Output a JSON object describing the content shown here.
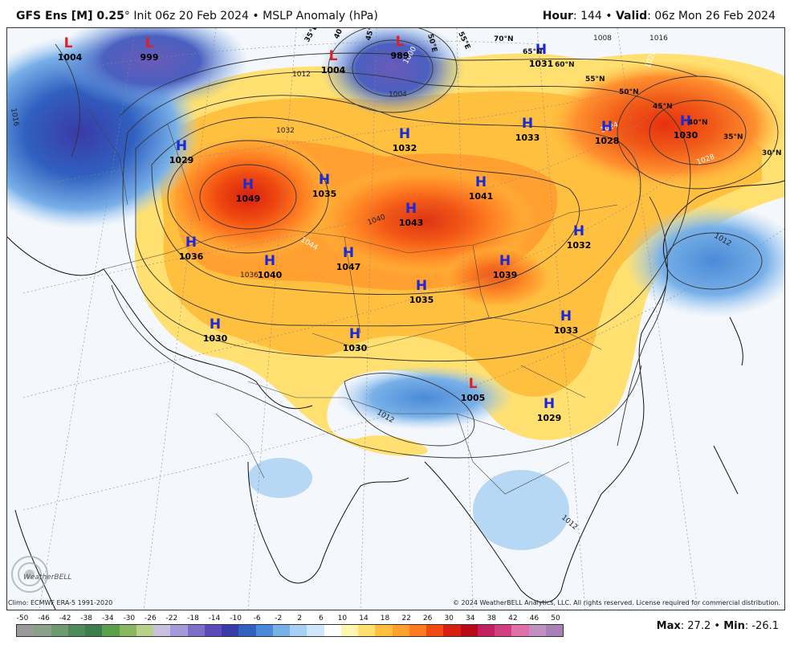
{
  "header": {
    "model": "GFS Ens [M] 0.25",
    "degree": "°",
    "init": "Init 06z 20 Feb 2024",
    "bullet": "•",
    "product": "MSLP Anomaly (hPa)",
    "hour_label": "Hour",
    "hour_value": ": 144",
    "valid_label": "Valid",
    "valid_value": ": 06z Mon 26 Feb 2024"
  },
  "footer": {
    "climo": "Climo: ECMWF ERA-5 1991-2020",
    "copyright": "© 2024 WeatherBELL Analytics, LLC. All rights reserved. License required for commercial distribution.",
    "logo_text": "WeatherBELL",
    "max_label": "Max",
    "max_value": ": 27.2",
    "min_label": "Min",
    "min_value": ": -26.1",
    "sep": "•"
  },
  "colorbar": {
    "ticks": [
      "-50",
      "-46",
      "-42",
      "-38",
      "-34",
      "-30",
      "-26",
      "-22",
      "-18",
      "-14",
      "-10",
      "-6",
      "-2",
      "2",
      "6",
      "10",
      "14",
      "18",
      "22",
      "26",
      "30",
      "34",
      "38",
      "42",
      "46",
      "50"
    ],
    "colors": [
      "#9a9a9a",
      "#8aa08a",
      "#6f9a6f",
      "#4f8a5a",
      "#3e7d4e",
      "#5aa04a",
      "#88b860",
      "#b7d08a",
      "#c9c0e0",
      "#a59ad8",
      "#7d6ec8",
      "#5a4bb8",
      "#3a3aa8",
      "#3060c0",
      "#4a8ad8",
      "#78b0e8",
      "#a8d0f4",
      "#d0e6fa",
      "#ffffff",
      "#fff6b0",
      "#ffe070",
      "#ffc040",
      "#ffa030",
      "#ff7a20",
      "#f04a10",
      "#d82010",
      "#b80a18",
      "#c02060",
      "#d04080",
      "#e070a8",
      "#c090c0",
      "#a880b8"
    ]
  },
  "map": {
    "highs": [
      {
        "label": "H",
        "value": "1029"
      },
      {
        "label": "H",
        "value": "1049"
      },
      {
        "label": "H",
        "value": "1035"
      },
      {
        "label": "H",
        "value": "1032"
      },
      {
        "label": "H",
        "value": "1041"
      },
      {
        "label": "H",
        "value": "1043"
      },
      {
        "label": "H",
        "value": "1033"
      },
      {
        "label": "H",
        "value": "1028"
      },
      {
        "label": "H",
        "value": "1030"
      },
      {
        "label": "H",
        "value": "1031"
      },
      {
        "label": "H",
        "value": "1036"
      },
      {
        "label": "H",
        "value": "1040"
      },
      {
        "label": "H",
        "value": "1047"
      },
      {
        "label": "H",
        "value": "1039"
      },
      {
        "label": "H",
        "value": "1032"
      },
      {
        "label": "H",
        "value": "1035"
      },
      {
        "label": "H",
        "value": "1033"
      },
      {
        "label": "H",
        "value": "1030"
      },
      {
        "label": "H",
        "value": "1030"
      },
      {
        "label": "H",
        "value": "1029"
      }
    ],
    "lows": [
      {
        "label": "L",
        "value": "1004"
      },
      {
        "label": "L",
        "value": "999"
      },
      {
        "label": "L",
        "value": "1004"
      },
      {
        "label": "L",
        "value": "989"
      },
      {
        "label": "L",
        "value": "1005"
      }
    ],
    "lat_labels": [
      "70°N",
      "65°N",
      "60°N",
      "55°N",
      "50°N",
      "45°N",
      "40°N",
      "35°N",
      "30°N"
    ],
    "lon_labels": [
      "35°E",
      "40°E",
      "45°E",
      "50°E",
      "55°E"
    ],
    "isobar_labels": [
      "1032",
      "1044",
      "1040",
      "1036",
      "1028",
      "1024",
      "1020",
      "1016",
      "1012",
      "1008",
      "1004",
      "1000",
      "1016",
      "1012",
      "1012",
      "1012"
    ]
  }
}
